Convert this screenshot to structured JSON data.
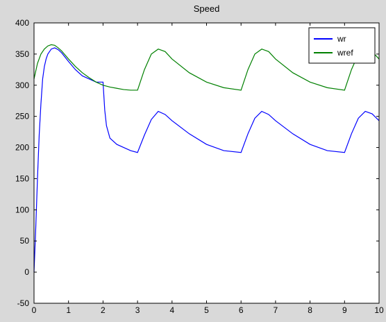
{
  "colors": {
    "window_background": "#d9d9d9",
    "plot_background": "#ffffff",
    "axis_color": "#000000",
    "wr": "#0000ff",
    "wref": "#008000"
  },
  "chart_data": {
    "type": "line",
    "title": "Speed",
    "xlabel": "",
    "ylabel": "",
    "xlim": [
      0,
      10
    ],
    "ylim": [
      -50,
      400
    ],
    "xticks": [
      0,
      1,
      2,
      3,
      4,
      5,
      6,
      7,
      8,
      9,
      10
    ],
    "yticks": [
      -50,
      0,
      50,
      100,
      150,
      200,
      250,
      300,
      350,
      400
    ],
    "grid": false,
    "legend_position": "top-right",
    "series": [
      {
        "name": "wr",
        "color": "#0000ff",
        "x": [
          0,
          0.05,
          0.1,
          0.15,
          0.2,
          0.25,
          0.3,
          0.35,
          0.4,
          0.5,
          0.6,
          0.7,
          0.8,
          1.0,
          1.2,
          1.4,
          1.6,
          1.8,
          2.0,
          2.05,
          2.1,
          2.2,
          2.4,
          2.6,
          2.8,
          3.0,
          3.2,
          3.4,
          3.6,
          3.8,
          4.0,
          4.5,
          5.0,
          5.5,
          6.0,
          6.2,
          6.4,
          6.6,
          6.8,
          7.0,
          7.5,
          8.0,
          8.5,
          9.0,
          9.2,
          9.4,
          9.6,
          9.8,
          10.0
        ],
        "y": [
          0,
          70,
          150,
          220,
          270,
          310,
          330,
          342,
          350,
          358,
          360,
          357,
          352,
          338,
          325,
          315,
          310,
          305,
          305,
          260,
          235,
          215,
          205,
          200,
          195,
          192,
          220,
          245,
          258,
          253,
          243,
          222,
          205,
          195,
          192,
          222,
          247,
          258,
          253,
          243,
          222,
          205,
          195,
          192,
          222,
          247,
          258,
          254,
          243
        ]
      },
      {
        "name": "wref",
        "color": "#008000",
        "x": [
          0,
          0.1,
          0.2,
          0.3,
          0.4,
          0.5,
          0.6,
          0.7,
          0.8,
          1.0,
          1.2,
          1.4,
          1.6,
          1.8,
          2.0,
          2.2,
          2.4,
          2.6,
          2.8,
          3.0,
          3.2,
          3.4,
          3.6,
          3.8,
          4.0,
          4.5,
          5.0,
          5.5,
          6.0,
          6.2,
          6.4,
          6.6,
          6.8,
          7.0,
          7.5,
          8.0,
          8.5,
          9.0,
          9.2,
          9.4,
          9.6,
          9.8,
          10.0
        ],
        "y": [
          310,
          335,
          350,
          358,
          363,
          365,
          364,
          360,
          355,
          342,
          330,
          320,
          312,
          305,
          300,
          297,
          295,
          293,
          292,
          292,
          325,
          350,
          358,
          354,
          342,
          320,
          305,
          296,
          292,
          325,
          350,
          358,
          354,
          342,
          320,
          305,
          296,
          292,
          325,
          350,
          358,
          354,
          342
        ]
      }
    ]
  }
}
